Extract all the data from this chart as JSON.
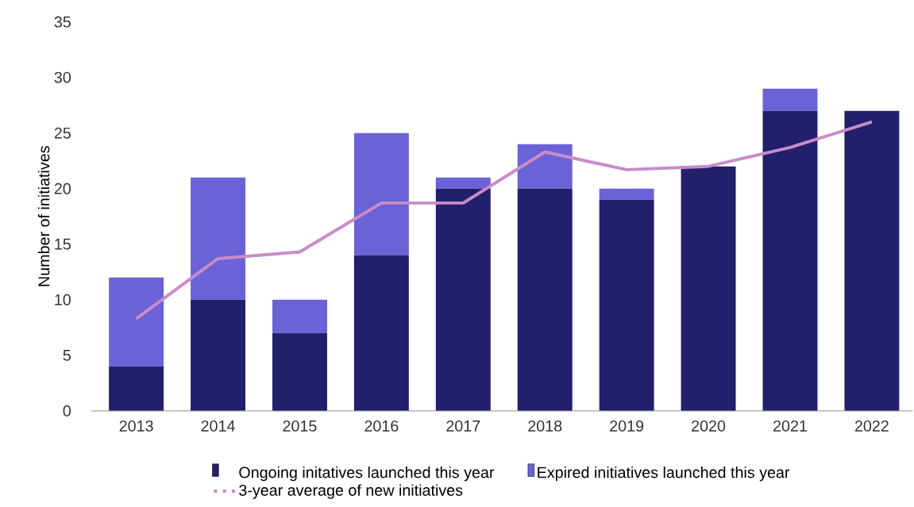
{
  "chart_data": {
    "type": "bar",
    "stacked": true,
    "ylabel": "Number of initiatives",
    "categories": [
      "2013",
      "2014",
      "2015",
      "2016",
      "2017",
      "2018",
      "2019",
      "2020",
      "2021",
      "2022"
    ],
    "ylim": [
      0,
      35
    ],
    "yticks": [
      0,
      5,
      10,
      15,
      20,
      25,
      30,
      35
    ],
    "legend": "bottom",
    "series": [
      {
        "name": "Ongoing initatives launched this year",
        "color": "#221f6b",
        "values": [
          4,
          10,
          7,
          14,
          20,
          20,
          19,
          22,
          27,
          27
        ]
      },
      {
        "name": "Expired initiatives launched this year",
        "color": "#6a62d6",
        "values": [
          8,
          11,
          3,
          11,
          1,
          4,
          1,
          0,
          2,
          0
        ]
      },
      {
        "name": "3-year average of new initiatives",
        "type": "line",
        "color": "#c98bc9",
        "values": [
          8.3,
          13.7,
          14.3,
          18.7,
          18.7,
          23.3,
          21.7,
          22,
          23.7,
          26
        ]
      }
    ]
  }
}
